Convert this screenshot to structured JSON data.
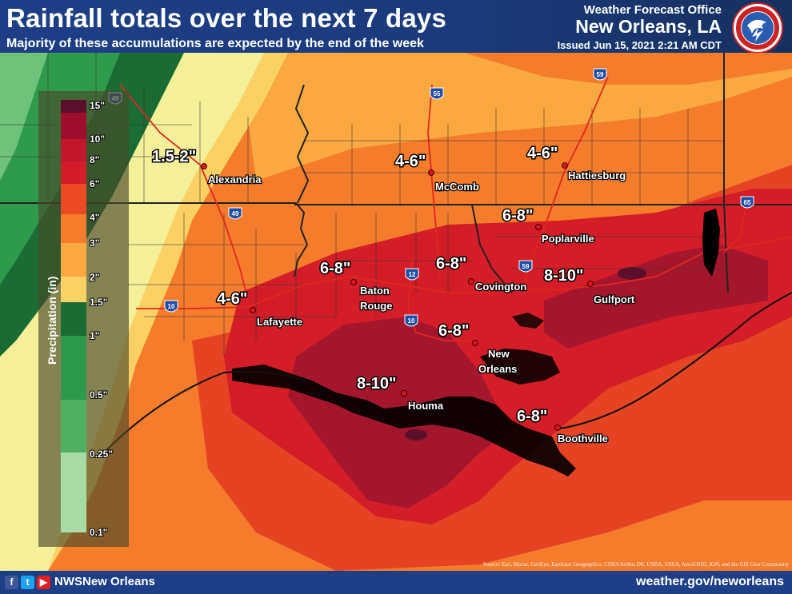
{
  "header": {
    "title": "Rainfall totals over the next 7 days",
    "subtitle": "Majority of these accumulations are expected by the end of the week",
    "office": "Weather Forecast Office",
    "office_city": "New Orleans, LA",
    "issued": "Issued Jun 15, 2021 2:21 AM CDT",
    "logo_text": "NATIONAL WEATHER SERVICE"
  },
  "legend": {
    "title": "Precipitation (in)",
    "ticks": [
      "15\"",
      "10\"",
      "8\"",
      "6\"",
      "4\"",
      "3\"",
      "2\"",
      "1.5\"",
      "1\"",
      "0.5\"",
      "0.25\"",
      "0.1\""
    ],
    "colors": {
      "c15": "#5c0f2a",
      "c10": "#9e0f2f",
      "c8": "#d41d26",
      "c6": "#ec4a25",
      "c4": "#f47c2b",
      "c3": "#f9a940",
      "c2": "#fbd164",
      "c15b": "#f4f09a",
      "c1": "#1b6b35",
      "c05": "#2f9a4a",
      "c025": "#6fc379",
      "c01": "#a9dca5"
    }
  },
  "map": {
    "amounts": [
      {
        "text": "1.5-2\""
      },
      {
        "text": "4-6\""
      },
      {
        "text": "4-6\""
      },
      {
        "text": "6-8\""
      },
      {
        "text": "6-8\""
      },
      {
        "text": "6-8\""
      },
      {
        "text": "8-10\""
      },
      {
        "text": "4-6\""
      },
      {
        "text": "6-8\""
      },
      {
        "text": "8-10\""
      },
      {
        "text": "6-8\""
      }
    ],
    "cities": [
      {
        "name": "Alexandria"
      },
      {
        "name": "McComb"
      },
      {
        "name": "Hattiesburg"
      },
      {
        "name": "Poplarville"
      },
      {
        "name": "Baton"
      },
      {
        "name": "Rouge"
      },
      {
        "name": "Covington"
      },
      {
        "name": "Gulfport"
      },
      {
        "name": "Lafayette"
      },
      {
        "name": "New"
      },
      {
        "name": "Orleans"
      },
      {
        "name": "Houma"
      },
      {
        "name": "Boothville"
      }
    ],
    "highways": [
      "49",
      "55",
      "59",
      "65",
      "49",
      "12",
      "59",
      "10",
      "10"
    ],
    "source": "Source: Esri, Maxar, GeoEye, Earthstar Geographics, CNES/Airbus DS, USDA, USGS, AeroGRID, IGN, and the GIS User Community"
  },
  "footer": {
    "handle": "NWSNew Orleans",
    "website": "weather.gov/neworleans",
    "social_icons": [
      "facebook-icon",
      "twitter-icon",
      "youtube-icon"
    ]
  }
}
